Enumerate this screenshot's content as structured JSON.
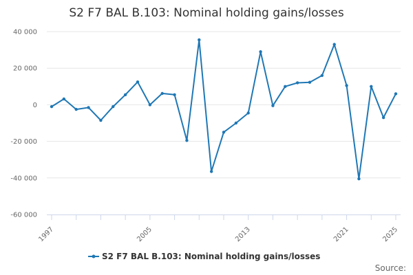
{
  "chart_data": {
    "type": "line",
    "title": "S2 F7 BAL B.103: Nominal holding gains/losses",
    "xlabel": "",
    "ylabel": "",
    "x": [
      1997,
      1998,
      1999,
      2000,
      2001,
      2002,
      2003,
      2004,
      2005,
      2006,
      2007,
      2008,
      2009,
      2010,
      2011,
      2012,
      2013,
      2014,
      2015,
      2016,
      2017,
      2018,
      2019,
      2020,
      2021,
      2022,
      2023,
      2024,
      2025
    ],
    "series": [
      {
        "name": "S2 F7 BAL B.103: Nominal holding gains/losses",
        "color": "#1f77b4",
        "values": [
          -1000,
          3200,
          -2500,
          -1500,
          -8500,
          -1000,
          5500,
          12500,
          0,
          6200,
          5500,
          -19500,
          35500,
          -36500,
          -15000,
          -10000,
          -4500,
          29000,
          -500,
          10000,
          12000,
          12300,
          16000,
          33000,
          10500,
          -40500,
          10000,
          -7000,
          6000
        ]
      }
    ],
    "ylim": [
      -60000,
      40000
    ],
    "yticks": [
      40000,
      20000,
      0,
      -20000,
      -40000,
      -60000
    ],
    "ytick_labels": [
      "40 000",
      "20 000",
      "0",
      "-20 000",
      "-40 000",
      "-60 000"
    ],
    "xticks": [
      1997,
      2005,
      2013,
      2021,
      2025
    ],
    "xtick_labels": [
      "1997",
      "2005",
      "2013",
      "2021",
      "2025"
    ],
    "grid": true,
    "legend": "bottom",
    "source_label": "Source:"
  }
}
